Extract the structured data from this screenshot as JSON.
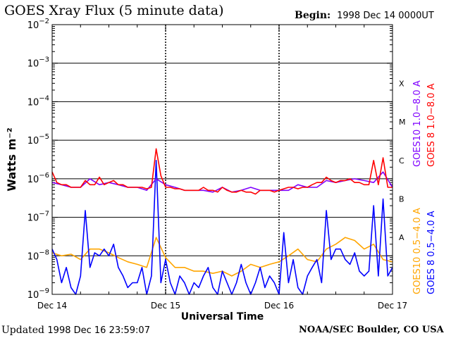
{
  "header": {
    "title": "GOES Xray Flux (5 minute data)",
    "begin_label": "Begin:",
    "begin_value": "1998 Dec 14 0000UT"
  },
  "footer": {
    "updated_label": "Updated",
    "updated_value": "1998 Dec 16 23:59:07",
    "credit": "NOAA/SEC Boulder, CO USA"
  },
  "chart_data": {
    "type": "line",
    "title": "GOES Xray Flux (5 minute data)",
    "xlabel": "Universal Time",
    "ylabel": "Watts m⁻²",
    "y_scale": "log",
    "ylim": [
      1e-09,
      0.01
    ],
    "y_ticks": [
      {
        "value": 1e-09,
        "base": "10",
        "exp": "−9"
      },
      {
        "value": 1e-08,
        "base": "10",
        "exp": "−8"
      },
      {
        "value": 1e-07,
        "base": "10",
        "exp": "−7"
      },
      {
        "value": 1e-06,
        "base": "10",
        "exp": "−6"
      },
      {
        "value": 1e-05,
        "base": "10",
        "exp": "−5"
      },
      {
        "value": 0.0001,
        "base": "10",
        "exp": "−4"
      },
      {
        "value": 0.001,
        "base": "10",
        "exp": "−3"
      },
      {
        "value": 0.01,
        "base": "10",
        "exp": "−2"
      }
    ],
    "xlim": [
      "1998-12-14 00:00",
      "1998-12-17 00:00"
    ],
    "x_ticks": [
      {
        "at": "1998-12-14 00:00",
        "label": "Dec 14"
      },
      {
        "at": "1998-12-15 00:00",
        "label": "Dec 15"
      },
      {
        "at": "1998-12-16 00:00",
        "label": "Dec 16"
      },
      {
        "at": "1998-12-17 00:00",
        "label": "Dec 17"
      }
    ],
    "flare_classes": [
      {
        "label": "X",
        "value": 0.0003
      },
      {
        "label": "M",
        "value": 3e-05
      },
      {
        "label": "C",
        "value": 3e-06
      },
      {
        "label": "B",
        "value": 3e-07
      },
      {
        "label": "A",
        "value": 3e-08
      }
    ],
    "class_gridlines": [
      0.001,
      0.0001,
      1e-05,
      1e-06,
      1e-07,
      1e-08
    ],
    "series": [
      {
        "name": "GOES10 0.5−4.0 A",
        "color": "#ffa500",
        "x_hours": [
          0,
          2,
          4,
          6,
          8,
          10,
          12,
          14,
          16,
          18,
          20,
          22,
          24,
          26,
          28,
          30,
          32,
          34,
          36,
          38,
          40,
          42,
          44,
          46,
          48,
          50,
          52,
          54,
          56,
          58,
          60,
          62,
          64,
          66,
          68,
          70,
          72
        ],
        "values": [
          1.2e-08,
          1e-08,
          1.1e-08,
          8e-09,
          1.5e-08,
          1.5e-08,
          1.2e-08,
          9e-09,
          7e-09,
          6e-09,
          5e-09,
          3e-08,
          9e-09,
          5e-09,
          5e-09,
          4e-09,
          4e-09,
          3.5e-09,
          4e-09,
          3e-09,
          4e-09,
          6e-09,
          5e-09,
          6e-09,
          7e-09,
          1e-08,
          1.5e-08,
          8e-09,
          7e-09,
          1.5e-08,
          2e-08,
          3e-08,
          2.5e-08,
          1.5e-08,
          2e-08,
          8e-09,
          7e-09
        ]
      },
      {
        "name": "GOES 8 0.5−4.0 A",
        "color": "#0000ff",
        "x_hours": [
          0,
          1,
          2,
          3,
          4,
          5,
          6,
          7,
          8,
          9,
          10,
          11,
          12,
          13,
          14,
          15,
          16,
          17,
          18,
          19,
          20,
          21,
          22,
          23,
          24,
          25,
          26,
          27,
          28,
          29,
          30,
          31,
          32,
          33,
          34,
          35,
          36,
          37,
          38,
          39,
          40,
          41,
          42,
          43,
          44,
          45,
          46,
          47,
          48,
          49,
          50,
          51,
          52,
          53,
          54,
          55,
          56,
          57,
          58,
          59,
          60,
          61,
          62,
          63,
          64,
          65,
          66,
          67,
          68,
          69,
          70,
          71,
          72
        ],
        "values": [
          1.5e-08,
          8e-09,
          2e-09,
          5e-09,
          1.5e-09,
          1e-09,
          3e-09,
          1.5e-07,
          5e-09,
          1.2e-08,
          1e-08,
          1.5e-08,
          1e-08,
          2e-08,
          5e-09,
          3e-09,
          1.5e-09,
          2e-09,
          2e-09,
          5e-09,
          1e-09,
          3e-09,
          3e-06,
          2e-09,
          8e-09,
          2e-09,
          1e-09,
          3e-09,
          2e-09,
          1e-09,
          2e-09,
          1.5e-09,
          3e-09,
          5e-09,
          1.5e-09,
          1e-09,
          4e-09,
          2e-09,
          1e-09,
          2e-09,
          6e-09,
          2e-09,
          1e-09,
          2e-09,
          5e-09,
          1.5e-09,
          3e-09,
          2e-09,
          1e-09,
          4e-08,
          2e-09,
          8e-09,
          1.5e-09,
          1e-09,
          3e-09,
          5e-09,
          8e-09,
          2e-09,
          1.5e-07,
          8e-09,
          1.5e-08,
          1.5e-08,
          8e-09,
          6e-09,
          1.2e-08,
          4e-09,
          3e-09,
          4e-09,
          2e-07,
          3e-09,
          3e-07,
          3e-09,
          5e-09
        ]
      },
      {
        "name": "GOES10 1.0−8.0 A",
        "color": "#7f00ff",
        "x_hours": [
          0,
          2,
          4,
          6,
          8,
          10,
          12,
          14,
          16,
          18,
          20,
          22,
          24,
          26,
          28,
          30,
          32,
          34,
          36,
          38,
          40,
          42,
          44,
          46,
          48,
          50,
          52,
          54,
          56,
          58,
          60,
          62,
          64,
          66,
          68,
          70,
          72
        ],
        "values": [
          8e-07,
          7e-07,
          6e-07,
          6e-07,
          1e-06,
          7e-07,
          8e-07,
          7e-07,
          6e-07,
          6e-07,
          5e-07,
          1e-06,
          7e-07,
          6e-07,
          5e-07,
          5e-07,
          5e-07,
          4.5e-07,
          6e-07,
          4.5e-07,
          5e-07,
          6e-07,
          5e-07,
          5e-07,
          5e-07,
          5e-07,
          7e-07,
          6e-07,
          6e-07,
          9e-07,
          8e-07,
          9e-07,
          1e-06,
          9e-07,
          8e-07,
          1.5e-06,
          6e-07
        ]
      },
      {
        "name": "GOES 8 1.0−8.0 A",
        "color": "#ff0000",
        "x_hours": [
          0,
          1,
          2,
          3,
          4,
          5,
          6,
          7,
          8,
          9,
          10,
          11,
          12,
          13,
          14,
          15,
          16,
          17,
          18,
          19,
          20,
          21,
          22,
          23,
          24,
          25,
          26,
          27,
          28,
          29,
          30,
          31,
          32,
          33,
          34,
          35,
          36,
          37,
          38,
          39,
          40,
          41,
          42,
          43,
          44,
          45,
          46,
          47,
          48,
          49,
          50,
          51,
          52,
          53,
          54,
          55,
          56,
          57,
          58,
          59,
          60,
          61,
          62,
          63,
          64,
          65,
          66,
          67,
          68,
          69,
          70,
          71,
          72
        ],
        "values": [
          1.5e-06,
          8e-07,
          7e-07,
          7e-07,
          6e-07,
          6e-07,
          6e-07,
          9e-07,
          7e-07,
          7e-07,
          1.1e-06,
          7e-07,
          8e-07,
          9e-07,
          7e-07,
          7e-07,
          6e-07,
          6e-07,
          6e-07,
          6e-07,
          5.5e-07,
          6e-07,
          6e-06,
          1.2e-06,
          6e-07,
          6e-07,
          5.5e-07,
          5.5e-07,
          5e-07,
          5e-07,
          5e-07,
          5e-07,
          6e-07,
          5e-07,
          5e-07,
          4.5e-07,
          6e-07,
          5e-07,
          4.5e-07,
          4.5e-07,
          5e-07,
          4.5e-07,
          4.5e-07,
          4e-07,
          5e-07,
          5e-07,
          5e-07,
          4.5e-07,
          5e-07,
          5.5e-07,
          6e-07,
          6e-07,
          5.5e-07,
          6e-07,
          6e-07,
          7e-07,
          8e-07,
          8e-07,
          1.1e-06,
          9e-07,
          8e-07,
          9e-07,
          9e-07,
          1e-06,
          8e-07,
          8e-07,
          7e-07,
          7e-07,
          3e-06,
          7e-07,
          3.5e-06,
          6e-07,
          6e-07
        ]
      }
    ]
  }
}
